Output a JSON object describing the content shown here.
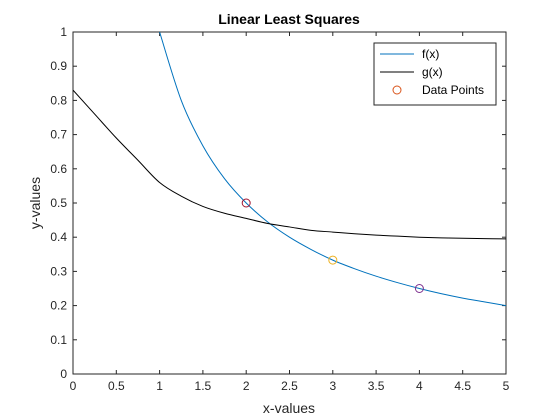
{
  "chart_data": {
    "type": "line",
    "title": "Linear Least Squares",
    "xlabel": "x-values",
    "ylabel": "y-values",
    "xlim": [
      0,
      5
    ],
    "ylim": [
      0,
      1
    ],
    "xticks": [
      0,
      0.5,
      1,
      1.5,
      2,
      2.5,
      3,
      3.5,
      4,
      4.5,
      5
    ],
    "xtick_labels": [
      "0",
      "0.5",
      "1",
      "1.5",
      "2",
      "2.5",
      "3",
      "3.5",
      "4",
      "4.5",
      "5"
    ],
    "yticks": [
      0,
      0.1,
      0.2,
      0.3,
      0.4,
      0.5,
      0.6,
      0.7,
      0.8,
      0.9,
      1
    ],
    "ytick_labels": [
      "0",
      "0.1",
      "0.2",
      "0.3",
      "0.4",
      "0.5",
      "0.6",
      "0.7",
      "0.8",
      "0.9",
      "1"
    ],
    "grid": false,
    "legend_position": "top-right",
    "series": [
      {
        "name": "f(x)",
        "kind": "line",
        "color": "#0072BD",
        "x": [
          1,
          1.25,
          1.5,
          1.75,
          2,
          2.25,
          2.5,
          2.75,
          3,
          3.25,
          3.5,
          3.75,
          4,
          4.25,
          4.5,
          4.75,
          5
        ],
        "y": [
          1,
          0.8,
          0.667,
          0.571,
          0.5,
          0.444,
          0.4,
          0.364,
          0.333,
          0.308,
          0.286,
          0.267,
          0.25,
          0.235,
          0.222,
          0.211,
          0.2
        ]
      },
      {
        "name": "g(x)",
        "kind": "line",
        "color": "#000000",
        "x": [
          0,
          0.25,
          0.5,
          0.75,
          1,
          1.25,
          1.5,
          1.75,
          2,
          2.25,
          2.5,
          2.75,
          3,
          3.25,
          3.5,
          3.75,
          4,
          4.25,
          4.5,
          4.75,
          5
        ],
        "y": [
          0.83,
          0.76,
          0.69,
          0.625,
          0.56,
          0.52,
          0.49,
          0.47,
          0.455,
          0.44,
          0.43,
          0.42,
          0.415,
          0.41,
          0.406,
          0.403,
          0.4,
          0.398,
          0.397,
          0.396,
          0.395
        ]
      },
      {
        "name": "Data Points",
        "kind": "markers",
        "legend_color": "#D95319",
        "x": [
          2,
          3,
          4
        ],
        "y": [
          0.5,
          0.333,
          0.25
        ],
        "colors": [
          "#A2142F",
          "#EDB120",
          "#7E2F8E"
        ]
      }
    ]
  }
}
